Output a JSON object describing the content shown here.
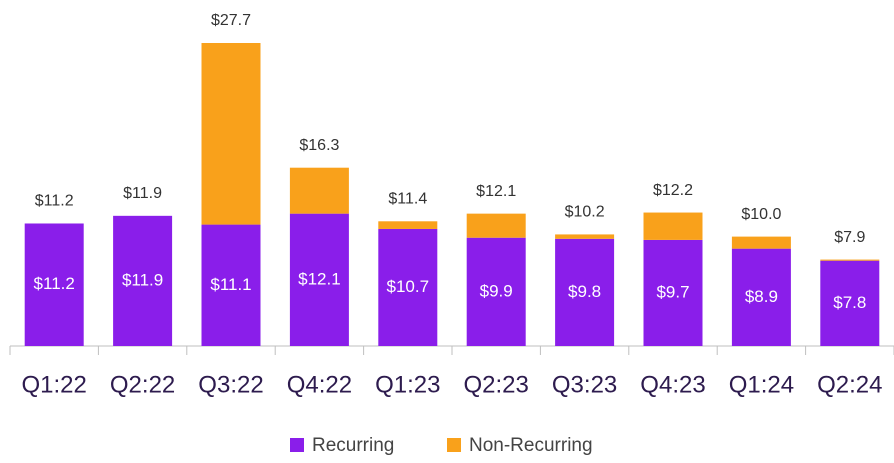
{
  "chart_data": {
    "type": "stacked_bar",
    "categories": [
      "Q1:22",
      "Q2:22",
      "Q3:22",
      "Q4:22",
      "Q1:23",
      "Q2:23",
      "Q3:23",
      "Q4:23",
      "Q1:24",
      "Q2:24"
    ],
    "series": [
      {
        "name": "Recurring",
        "color": "#8a1eea",
        "values": [
          11.2,
          11.9,
          11.1,
          12.1,
          10.7,
          9.9,
          9.8,
          9.7,
          8.9,
          7.8
        ],
        "value_labels": [
          "$11.2",
          "$11.9",
          "$11.1",
          "$12.1",
          "$10.7",
          "$9.9",
          "$9.8",
          "$9.7",
          "$8.9",
          "$7.8"
        ]
      },
      {
        "name": "Non-Recurring",
        "color": "#f9a11b",
        "values": [
          0,
          0,
          16.6,
          4.2,
          0.7,
          2.2,
          0.4,
          2.5,
          1.1,
          0.1
        ]
      }
    ],
    "totals": [
      11.2,
      11.9,
      27.7,
      16.3,
      11.4,
      12.1,
      10.2,
      12.2,
      10.0,
      7.9
    ],
    "total_labels": [
      "$11.2",
      "$11.9",
      "$27.7",
      "$16.3",
      "$11.4",
      "$12.1",
      "$10.2",
      "$12.2",
      "$10.0",
      "$7.9"
    ],
    "legend": "bottom"
  }
}
